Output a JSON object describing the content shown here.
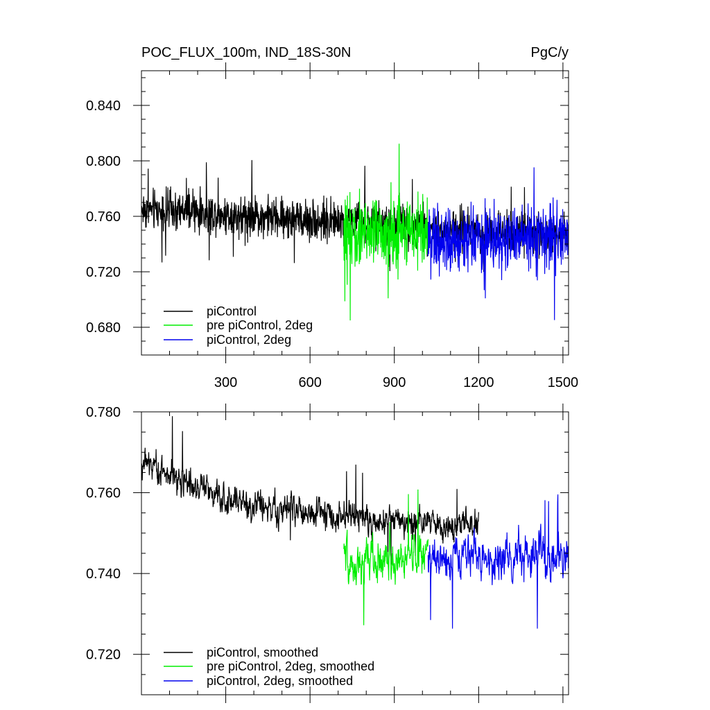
{
  "chart_data": [
    {
      "type": "line",
      "title": "POC_FLUX_100m, IND_18S-30N",
      "units": "PgC/y",
      "xlim": [
        0,
        1520
      ],
      "ylim": [
        0.66,
        0.865
      ],
      "xticks": [
        300,
        600,
        900,
        1200,
        1500
      ],
      "yticks": [
        0.68,
        0.72,
        0.76,
        0.8,
        0.84
      ],
      "ytick_labels": [
        "0.680",
        "0.720",
        "0.760",
        "0.800",
        "0.840"
      ],
      "xtick_labels": [
        "300",
        "600",
        "900",
        "1200",
        "1500"
      ],
      "legend_position": "bottom-left",
      "series": [
        {
          "name": "piControl",
          "color": "#000000",
          "x_range": [
            1,
            1520
          ],
          "mean_trend": [
            [
              1,
              0.765
            ],
            [
              720,
              0.756
            ],
            [
              1100,
              0.75
            ],
            [
              1520,
              0.748
            ]
          ],
          "spread": 0.016
        },
        {
          "name": "pre piControl, 2deg",
          "color": "#00ee00",
          "x_range": [
            720,
            1020
          ],
          "mean_trend": [
            [
              720,
              0.748
            ],
            [
              1020,
              0.75
            ]
          ],
          "spread": 0.028
        },
        {
          "name": "piControl, 2deg",
          "color": "#0000ee",
          "x_range": [
            1020,
            1520
          ],
          "mean_trend": [
            [
              1020,
              0.742
            ],
            [
              1520,
              0.744
            ]
          ],
          "spread": 0.026
        }
      ]
    },
    {
      "type": "line",
      "title": "",
      "xlim": [
        0,
        1520
      ],
      "ylim": [
        0.71,
        0.78
      ],
      "xticks": [
        300,
        600,
        900,
        1200,
        1500
      ],
      "yticks": [
        0.72,
        0.74,
        0.76,
        0.78
      ],
      "ytick_labels": [
        "0.720",
        "0.740",
        "0.760",
        "0.780"
      ],
      "legend_position": "bottom-left",
      "series": [
        {
          "name": "piControl, smoothed",
          "color": "#000000",
          "x_range": [
            1,
            1200
          ],
          "mean_trend": [
            [
              1,
              0.768
            ],
            [
              300,
              0.758
            ],
            [
              720,
              0.754
            ],
            [
              1200,
              0.752
            ]
          ],
          "spread": 0.006
        },
        {
          "name": "pre piControl, 2deg, smoothed",
          "color": "#00ee00",
          "x_range": [
            720,
            1020
          ],
          "mean_trend": [
            [
              720,
              0.742
            ],
            [
              1020,
              0.745
            ]
          ],
          "spread": 0.008
        },
        {
          "name": "piControl, 2deg, smoothed",
          "color": "#0000ee",
          "x_range": [
            1020,
            1520
          ],
          "mean_trend": [
            [
              1020,
              0.744
            ],
            [
              1520,
              0.744
            ]
          ],
          "spread": 0.008
        }
      ]
    }
  ]
}
